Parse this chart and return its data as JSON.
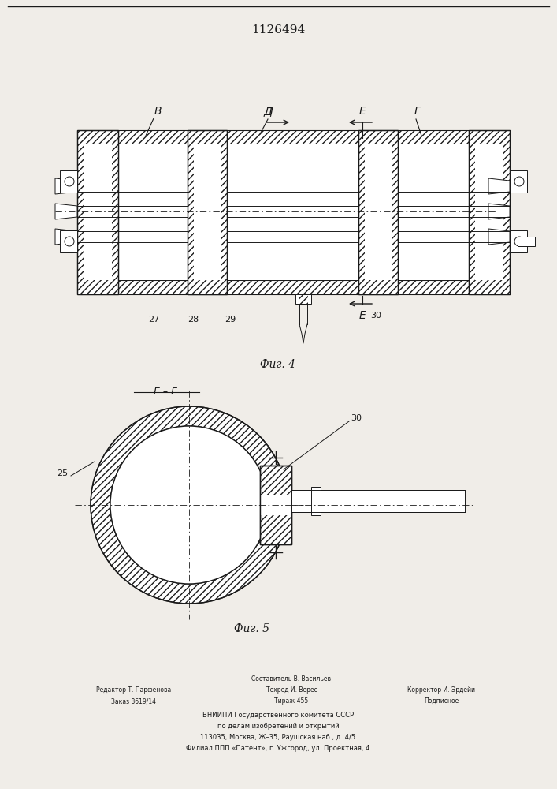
{
  "title": "1126494",
  "bg_color": "#f0ede8",
  "line_color": "#1a1a1a",
  "fig4_label": "Фиг. 4",
  "fig5_label": "Фиг. 5",
  "section_ee": "E – E"
}
